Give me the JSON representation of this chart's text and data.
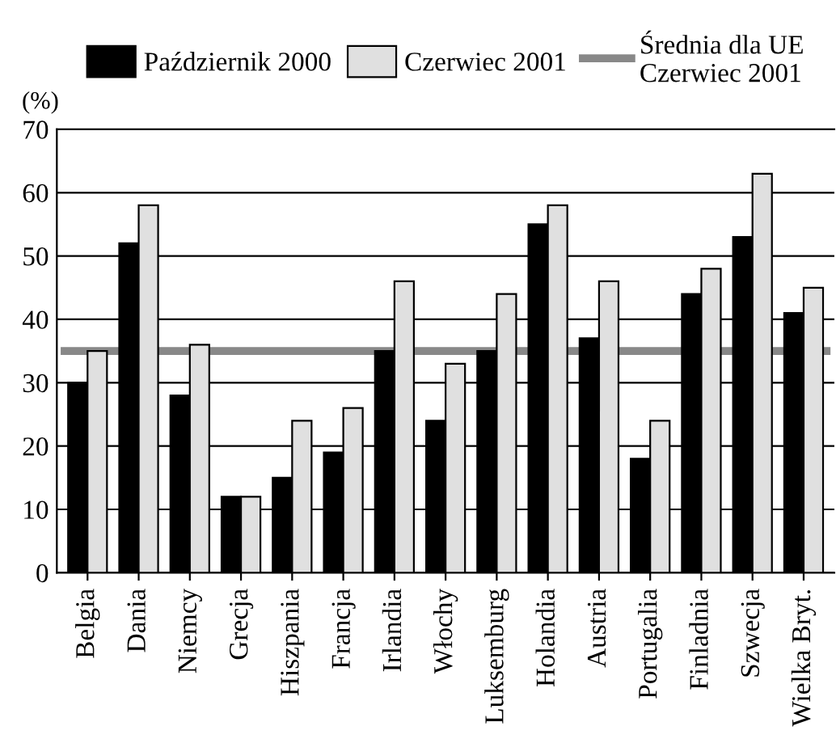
{
  "chart_data": {
    "type": "bar",
    "ylabel": "(%)",
    "categories": [
      "Belgia",
      "Dania",
      "Niemcy",
      "Grecja",
      "Hiszpania",
      "Francja",
      "Irlandia",
      "Włochy",
      "Luksemburg",
      "Holandia",
      "Austria",
      "Portugalia",
      "Finladnia",
      "Szwecja",
      "Wielka Bryt."
    ],
    "series": [
      {
        "name": "Październik 2000",
        "color": "#000000",
        "values": [
          30,
          52,
          28,
          12,
          15,
          19,
          35,
          24,
          35,
          55,
          37,
          18,
          44,
          53,
          41
        ]
      },
      {
        "name": "Czerwiec 2001",
        "color": "#e0e0e0",
        "values": [
          35,
          58,
          36,
          12,
          24,
          26,
          46,
          33,
          44,
          58,
          46,
          24,
          48,
          63,
          45
        ]
      }
    ],
    "ref_lines": [
      {
        "axis": "y",
        "value": 35,
        "label": "Średnia dla UE\nCzerwiec 2001",
        "color": "#888888",
        "line_style": "solid"
      }
    ],
    "ylim": [
      0,
      70
    ],
    "yticks": [
      0,
      10,
      20,
      30,
      40,
      50,
      60,
      70
    ],
    "grid": "y",
    "legend": "top"
  }
}
